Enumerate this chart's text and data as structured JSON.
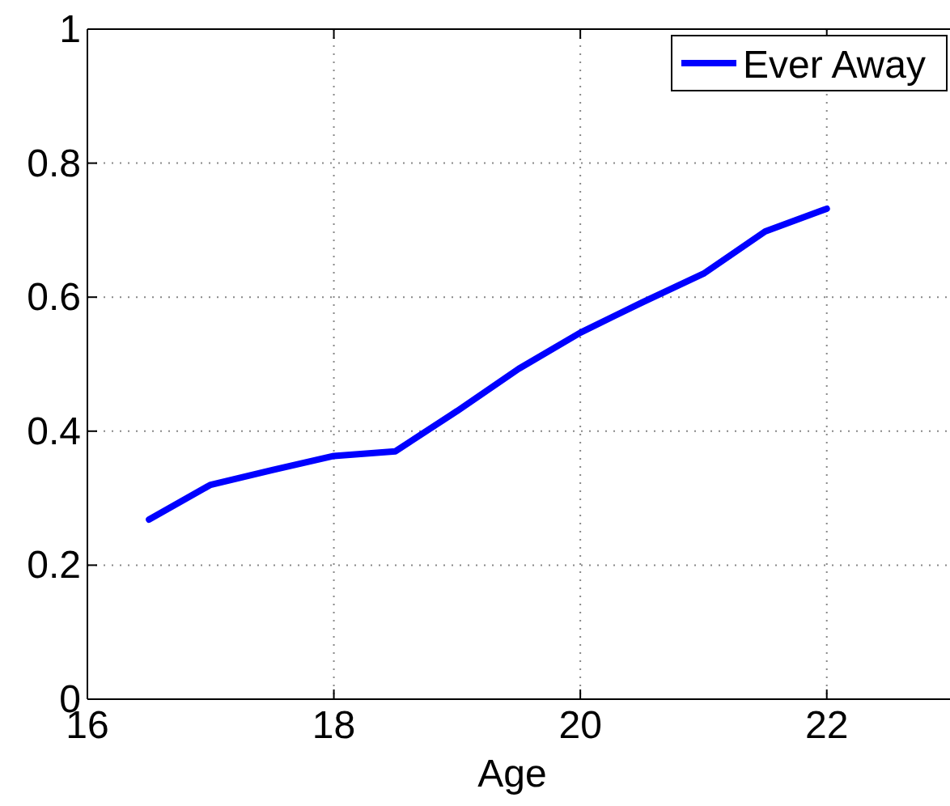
{
  "chart_data": {
    "type": "line",
    "xlabel": "Age",
    "x": [
      16.5,
      17,
      17.5,
      18,
      18.5,
      19,
      19.5,
      20,
      20.5,
      21,
      21.5,
      22
    ],
    "series": [
      {
        "name": "Ever Away",
        "color": "#0000ff",
        "values": [
          0.268,
          0.32,
          0.342,
          0.363,
          0.37,
          0.43,
          0.493,
          0.547,
          0.592,
          0.635,
          0.698,
          0.732
        ]
      }
    ],
    "xlim": [
      16,
      23
    ],
    "xticks": [
      16,
      18,
      20,
      22
    ],
    "ylim": [
      0,
      1
    ],
    "yticks": [
      0,
      0.2,
      0.4,
      0.6,
      0.8,
      1
    ],
    "grid": true,
    "legend": "top right",
    "marker": "none",
    "line_style": "solid"
  }
}
